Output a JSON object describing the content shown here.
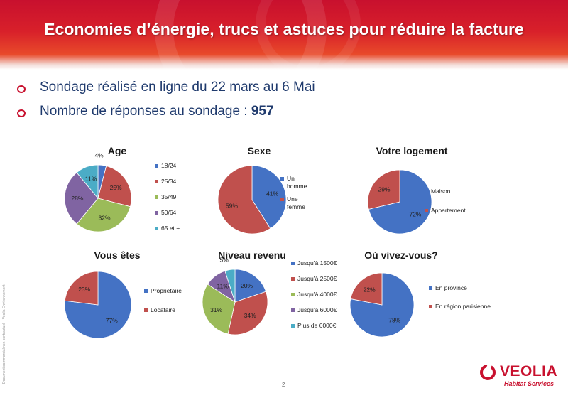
{
  "title": "Economies d’énergie, trucs et astuces pour réduire la facture",
  "bullets": [
    {
      "text": "Sondage réalisé en ligne du 22 mars au 6 Mai",
      "bold": ""
    },
    {
      "text": "Nombre de réponses au sondage : ",
      "bold": "957"
    }
  ],
  "side_note": "Document commercial non contractuel – Veolia Environnement",
  "page_number": "2",
  "logo": {
    "name": "VEOLIA",
    "sub": "Habitat Services"
  },
  "colors": {
    "blue": "#4472c4",
    "red": "#c0504d",
    "green": "#9bbb59",
    "purple": "#8064a2",
    "cyan": "#4bacc6",
    "accent": "#c8102e"
  },
  "chart_data": [
    {
      "type": "pie",
      "title": "Age",
      "categories": [
        "18/24",
        "25/34",
        "35/49",
        "50/64",
        "65 et +"
      ],
      "values": [
        4,
        25,
        32,
        28,
        11
      ],
      "labels": [
        "4%",
        "25%",
        "32%",
        "28%",
        "11%"
      ],
      "colors": [
        "#4472c4",
        "#c0504d",
        "#9bbb59",
        "#8064a2",
        "#4bacc6"
      ],
      "legend": "right"
    },
    {
      "type": "pie",
      "title": "Sexe",
      "categories": [
        "Un homme",
        "Une femme"
      ],
      "values": [
        41,
        59
      ],
      "labels": [
        "41%",
        "59%"
      ],
      "colors": [
        "#4472c4",
        "#c0504d"
      ],
      "legend": "right"
    },
    {
      "type": "pie",
      "title": "Votre logement",
      "categories": [
        "Maison",
        "Appartement"
      ],
      "values": [
        72,
        29
      ],
      "labels": [
        "72%",
        "29%"
      ],
      "colors": [
        "#4472c4",
        "#c0504d"
      ],
      "legend": "right"
    },
    {
      "type": "pie",
      "title": "Vous êtes",
      "categories": [
        "Propriétaire",
        "Locataire"
      ],
      "values": [
        77,
        23
      ],
      "labels": [
        "77%",
        "23%"
      ],
      "colors": [
        "#4472c4",
        "#c0504d"
      ],
      "legend": "right"
    },
    {
      "type": "pie",
      "title": "Niveau revenu",
      "categories": [
        "Jusqu’à 1500€",
        "Jusqu’à 2500€",
        "Jusqu’à 4000€",
        "Jusqu’à 6000€",
        "Plus de 6000€"
      ],
      "values": [
        20,
        34,
        31,
        11,
        5
      ],
      "labels": [
        "20%",
        "34%",
        "31%",
        "11%",
        "5%"
      ],
      "colors": [
        "#4472c4",
        "#c0504d",
        "#9bbb59",
        "#8064a2",
        "#4bacc6"
      ],
      "legend": "right"
    },
    {
      "type": "pie",
      "title": "Où vivez-vous?",
      "categories": [
        "En province",
        "En région parisienne"
      ],
      "values": [
        78,
        22
      ],
      "labels": [
        "78%",
        "22%"
      ],
      "colors": [
        "#4472c4",
        "#c0504d"
      ],
      "legend": "right"
    }
  ]
}
